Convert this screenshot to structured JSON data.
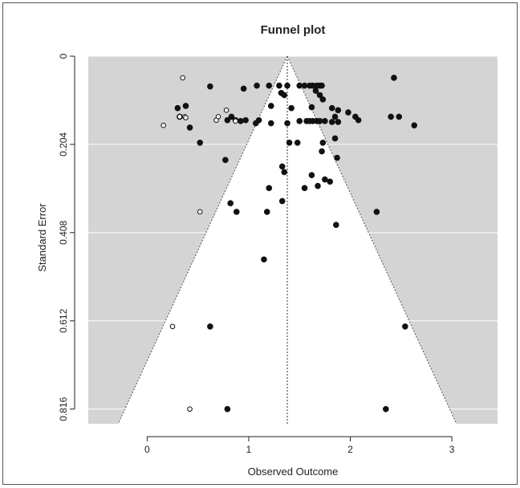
{
  "chart_data": {
    "type": "scatter",
    "title": "Funnel plot",
    "xlabel": "Observed Outcome",
    "ylabel": "Standard Error",
    "xlim": [
      -0.58,
      3.45
    ],
    "ylim": [
      0.85,
      0
    ],
    "y_reversed": true,
    "x_ticks": [
      0,
      1,
      2,
      3
    ],
    "x_tick_labels": [
      "0",
      "1",
      "2",
      "3"
    ],
    "y_ticks": [
      0,
      0.204,
      0.408,
      0.612,
      0.816
    ],
    "y_tick_labels": [
      "0",
      "0.204",
      "0.408",
      "0.612",
      "0.816"
    ],
    "grid": "horizontal",
    "background_color": "#d4d4d4",
    "funnel_fill": "#ffffff",
    "summary_estimate": 1.38,
    "funnel_se_max": 0.85,
    "funnel_z": 1.96,
    "series": [
      {
        "marker": "filled",
        "color": "#111111",
        "points": [
          [
            0.62,
            0.07
          ],
          [
            0.95,
            0.075
          ],
          [
            1.08,
            0.068
          ],
          [
            1.2,
            0.068
          ],
          [
            1.3,
            0.068
          ],
          [
            1.38,
            0.068
          ],
          [
            1.5,
            0.068
          ],
          [
            1.55,
            0.068
          ],
          [
            1.6,
            0.068
          ],
          [
            1.63,
            0.068
          ],
          [
            1.67,
            0.068
          ],
          [
            1.7,
            0.068
          ],
          [
            1.72,
            0.068
          ],
          [
            1.66,
            0.08
          ],
          [
            1.7,
            0.09
          ],
          [
            1.73,
            0.1
          ],
          [
            1.32,
            0.085
          ],
          [
            1.35,
            0.09
          ],
          [
            2.43,
            0.05
          ],
          [
            1.22,
            0.115
          ],
          [
            1.42,
            0.12
          ],
          [
            0.3,
            0.12
          ],
          [
            0.38,
            0.115
          ],
          [
            0.83,
            0.14
          ],
          [
            0.92,
            0.15
          ],
          [
            1.62,
            0.118
          ],
          [
            1.82,
            0.12
          ],
          [
            1.88,
            0.125
          ],
          [
            1.98,
            0.13
          ],
          [
            2.05,
            0.14
          ],
          [
            2.08,
            0.148
          ],
          [
            1.85,
            0.14
          ],
          [
            0.32,
            0.14
          ],
          [
            0.79,
            0.148
          ],
          [
            0.87,
            0.148
          ],
          [
            0.97,
            0.148
          ],
          [
            1.1,
            0.148
          ],
          [
            1.07,
            0.155
          ],
          [
            1.22,
            0.155
          ],
          [
            1.38,
            0.155
          ],
          [
            1.5,
            0.15
          ],
          [
            1.57,
            0.15
          ],
          [
            1.6,
            0.15
          ],
          [
            1.63,
            0.15
          ],
          [
            1.67,
            0.15
          ],
          [
            1.7,
            0.15
          ],
          [
            1.75,
            0.15
          ],
          [
            1.82,
            0.152
          ],
          [
            1.88,
            0.152
          ],
          [
            2.4,
            0.14
          ],
          [
            2.48,
            0.14
          ],
          [
            0.42,
            0.165
          ],
          [
            2.63,
            0.16
          ],
          [
            1.85,
            0.19
          ],
          [
            0.52,
            0.2
          ],
          [
            1.4,
            0.2
          ],
          [
            1.48,
            0.2
          ],
          [
            1.73,
            0.2
          ],
          [
            1.72,
            0.22
          ],
          [
            1.87,
            0.235
          ],
          [
            0.77,
            0.24
          ],
          [
            1.33,
            0.255
          ],
          [
            1.35,
            0.268
          ],
          [
            1.62,
            0.275
          ],
          [
            1.75,
            0.285
          ],
          [
            1.8,
            0.29
          ],
          [
            1.68,
            0.3
          ],
          [
            1.55,
            0.305
          ],
          [
            1.2,
            0.305
          ],
          [
            1.33,
            0.335
          ],
          [
            0.82,
            0.34
          ],
          [
            1.18,
            0.36
          ],
          [
            0.88,
            0.36
          ],
          [
            2.26,
            0.36
          ],
          [
            1.86,
            0.39
          ],
          [
            1.15,
            0.47
          ],
          [
            0.62,
            0.625
          ],
          [
            2.54,
            0.625
          ],
          [
            0.79,
            0.816
          ],
          [
            2.35,
            0.816
          ]
        ]
      },
      {
        "marker": "open",
        "color": "#111111",
        "points": [
          [
            0.35,
            0.05
          ],
          [
            0.78,
            0.125
          ],
          [
            0.7,
            0.14
          ],
          [
            0.32,
            0.14
          ],
          [
            0.37,
            0.14
          ],
          [
            0.38,
            0.142
          ],
          [
            0.68,
            0.148
          ],
          [
            0.87,
            0.15
          ],
          [
            0.16,
            0.16
          ],
          [
            0.52,
            0.36
          ],
          [
            0.25,
            0.625
          ],
          [
            0.42,
            0.816
          ]
        ]
      }
    ]
  }
}
